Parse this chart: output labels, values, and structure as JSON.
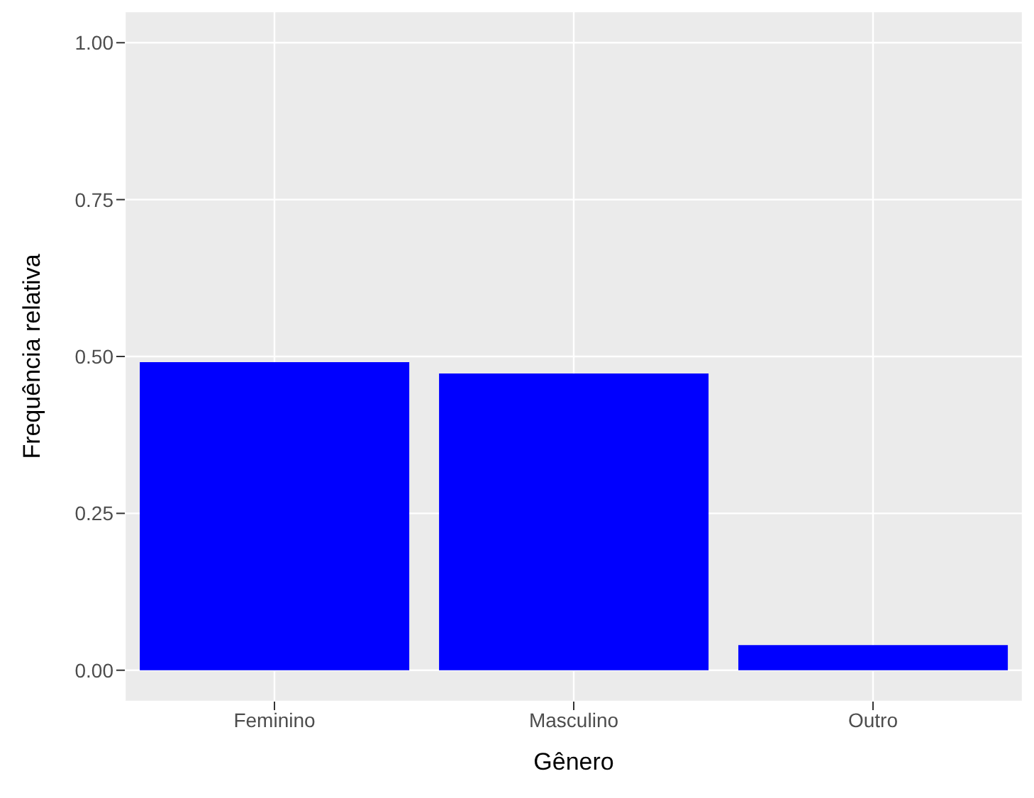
{
  "chart_data": {
    "type": "bar",
    "xlabel": "Gênero",
    "ylabel": "Frequência relativa",
    "categories": [
      "Feminino",
      "Masculino",
      "Outro"
    ],
    "values": [
      0.491,
      0.473,
      0.04
    ],
    "color": "#0000ff",
    "ylim": [
      -0.05,
      1.05
    ],
    "yticks": [
      {
        "value": 0,
        "label": "0.00"
      },
      {
        "value": 0.25,
        "label": "0.25"
      },
      {
        "value": 0.5,
        "label": "0.50"
      },
      {
        "value": 0.75,
        "label": "0.75"
      },
      {
        "value": 1,
        "label": "1.00"
      }
    ],
    "grid": true
  }
}
